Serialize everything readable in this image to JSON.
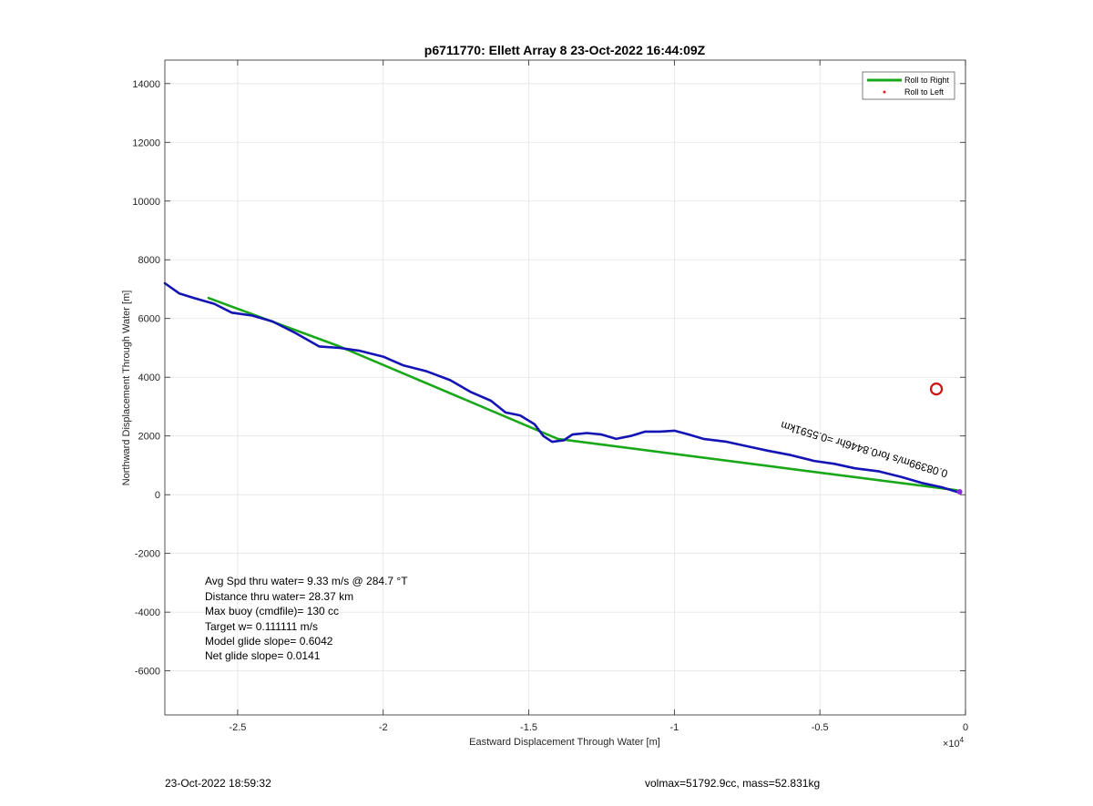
{
  "chart_data": {
    "type": "line",
    "title": "p6711770: Ellett Array 8 23-Oct-2022 16:44:09Z",
    "xlabel": "Eastward Displacement Through Water [m]",
    "ylabel": "Northward Displacement Through Water [m]",
    "x_exponent": "×10",
    "x_exponent_power": "4",
    "xlim": [
      -2.75,
      0
    ],
    "ylim": [
      -7500,
      14800
    ],
    "x_ticks": [
      -2.5,
      -2,
      -1.5,
      -1,
      -0.5,
      0
    ],
    "x_tick_labels": [
      "-2.5",
      "-2",
      "-1.5",
      "-1",
      "-0.5",
      "0"
    ],
    "y_ticks": [
      -6000,
      -4000,
      -2000,
      0,
      2000,
      4000,
      6000,
      8000,
      10000,
      12000,
      14000
    ],
    "y_tick_labels": [
      "-6000",
      "-4000",
      "-2000",
      "0",
      "2000",
      "4000",
      "6000",
      "8000",
      "10000",
      "12000",
      "14000"
    ],
    "grid": true,
    "legend_position": "top-right",
    "legend": [
      {
        "label": "Roll to Right",
        "color": "#1aa81a",
        "style": "line"
      },
      {
        "label": "Roll to Left",
        "color": "#e0201a",
        "style": "dot"
      }
    ],
    "series": [
      {
        "name": "Roll to Right",
        "color": "#1aa81a",
        "x": [
          -2.6,
          -2.15,
          -1.4,
          -0.03
        ],
        "y": [
          6700,
          5050,
          1900,
          150
        ]
      },
      {
        "name": "Roll to Left",
        "color": "#e0201a",
        "x": [],
        "y": []
      },
      {
        "color": "#1414b4",
        "x": [
          -2.75,
          -2.7,
          -2.65,
          -2.58,
          -2.52,
          -2.45,
          -2.38,
          -2.3,
          -2.22,
          -2.15,
          -2.08,
          -2.0,
          -1.93,
          -1.85,
          -1.77,
          -1.7,
          -1.63,
          -1.58,
          -1.53,
          -1.48,
          -1.45,
          -1.42,
          -1.38,
          -1.35,
          -1.3,
          -1.25,
          -1.2,
          -1.15,
          -1.1,
          -1.05,
          -1.0,
          -0.95,
          -0.9,
          -0.82,
          -0.75,
          -0.68,
          -0.6,
          -0.52,
          -0.45,
          -0.38,
          -0.3,
          -0.22,
          -0.15,
          -0.08,
          -0.03
        ],
        "y": [
          7200,
          6850,
          6700,
          6500,
          6200,
          6100,
          5900,
          5500,
          5050,
          5000,
          4900,
          4700,
          4400,
          4200,
          3900,
          3500,
          3200,
          2800,
          2700,
          2400,
          2000,
          1800,
          1850,
          2050,
          2100,
          2050,
          1900,
          2000,
          2150,
          2150,
          2180,
          2050,
          1900,
          1800,
          1650,
          1500,
          1350,
          1150,
          1050,
          900,
          800,
          600,
          400,
          250,
          100
        ]
      }
    ],
    "markers": [
      {
        "x": -0.1,
        "y": 3600,
        "color": "#cc1111",
        "shape": "circle"
      }
    ],
    "annotations": [
      {
        "text": "0.08399m/s for0.8446hr =0.5591km",
        "x": -0.63,
        "y": 2500,
        "rotation": 16.5
      }
    ],
    "stats": [
      "Avg Spd thru water=  9.33 m/s @ 284.7 °T",
      "Distance thru water= 28.37 km",
      "Max buoy (cmdfile)= 130 cc",
      "Target w= 0.111111 m/s",
      "Model glide slope= 0.6042",
      "Net glide slope= 0.0141"
    ]
  },
  "footer": {
    "timestamp": "23-Oct-2022 18:59:32",
    "summary": "volmax=51792.9cc, mass=52.831kg"
  }
}
